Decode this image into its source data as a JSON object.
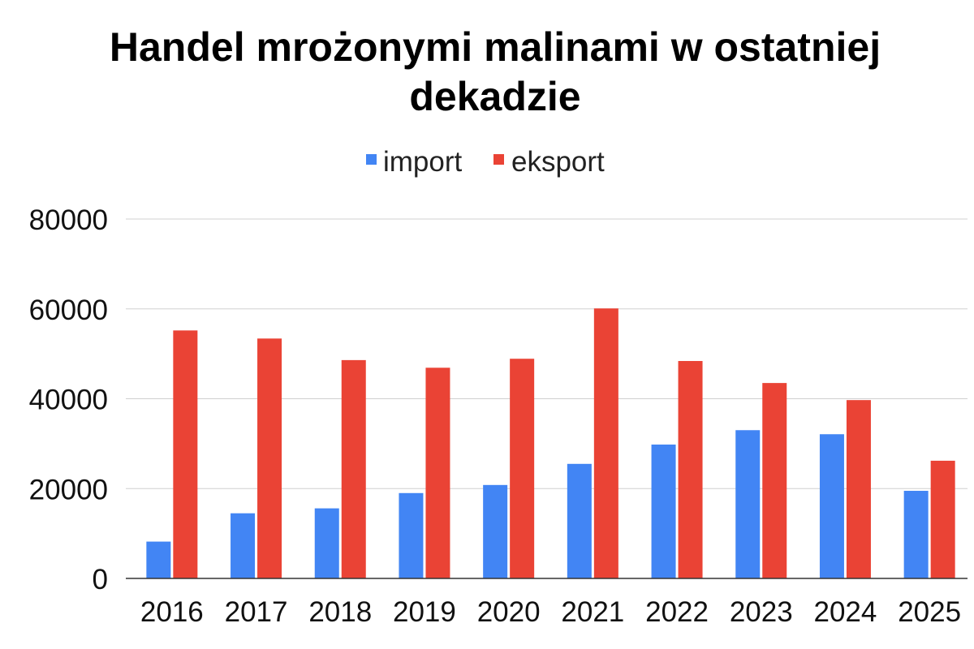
{
  "chart_data": {
    "type": "bar",
    "title_lines": [
      "Handel mrożonymi malinami w ostatniej",
      "dekadzie"
    ],
    "xlabel": "",
    "ylabel": "",
    "categories": [
      "2016",
      "2017",
      "2018",
      "2019",
      "2020",
      "2021",
      "2022",
      "2023",
      "2024",
      "2025"
    ],
    "series": [
      {
        "name": "import",
        "color": "#4285F4",
        "values": [
          8200,
          14500,
          15600,
          19000,
          20800,
          25500,
          29800,
          33000,
          32100,
          19500
        ]
      },
      {
        "name": "eksport",
        "color": "#EA4335",
        "values": [
          55200,
          53400,
          48600,
          46900,
          48900,
          60100,
          48400,
          43500,
          39700,
          26200
        ]
      }
    ],
    "ylim": [
      0,
      80000
    ],
    "yticks": [
      "0",
      "20000",
      "40000",
      "60000",
      "80000"
    ],
    "grid": true,
    "legend_position": "top-center",
    "gridline_color": "#d0d0d0",
    "axis_color": "#333333"
  }
}
